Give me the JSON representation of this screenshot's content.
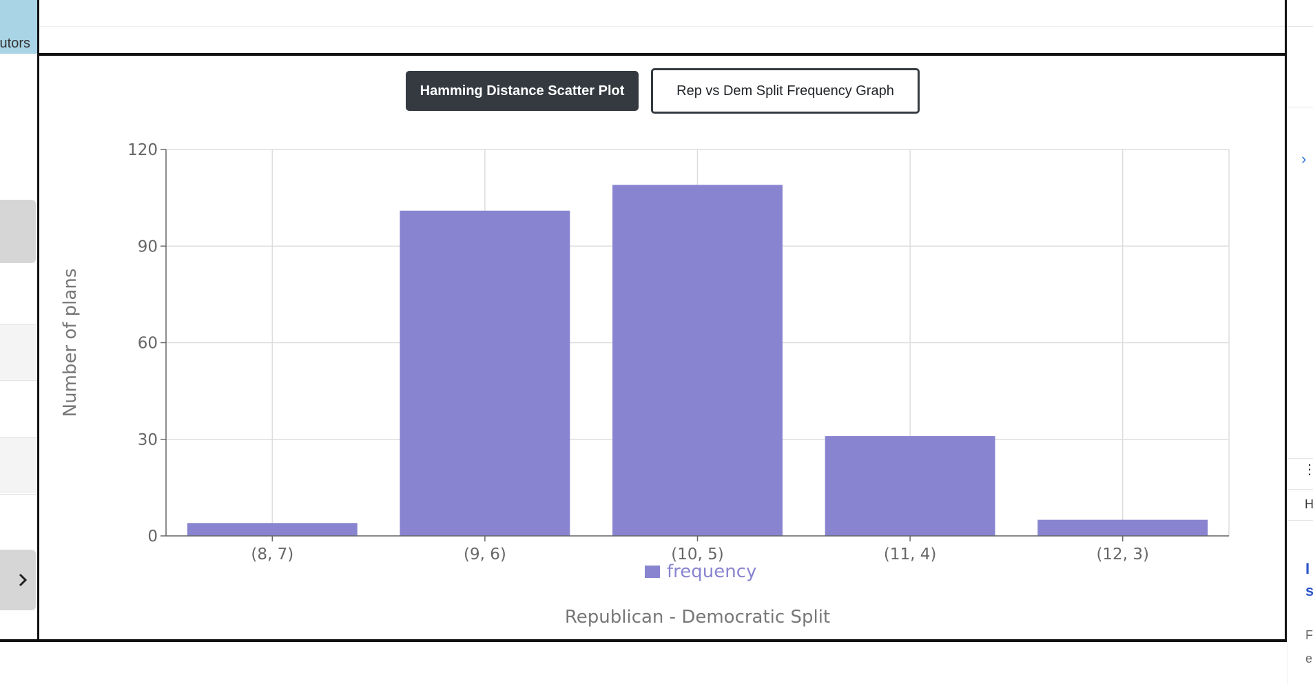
{
  "sidebar_left": {
    "tab_label": "utors",
    "expand_icon": "chevron-right-icon"
  },
  "buttons": {
    "scatter_label": "Hamming Distance Scatter Plot",
    "frequency_label": "Rep vs Dem Split Frequency Graph"
  },
  "right_strip": {
    "chevron_icon": "chevron-right-icon",
    "menu_icon": "vertical-dots-icon",
    "header_letter": "H",
    "link_text_1": "I",
    "link_text_2": "s",
    "text_1": "F",
    "text_2": "e"
  },
  "colors": {
    "bar": "#8884d0",
    "grid": "#dddddd",
    "axis": "#666666"
  },
  "chart_data": {
    "type": "bar",
    "categories": [
      "(8, 7)",
      "(9, 6)",
      "(10, 5)",
      "(11, 4)",
      "(12, 3)"
    ],
    "series": [
      {
        "name": "frequency",
        "values": [
          4,
          101,
          109,
          31,
          5
        ]
      }
    ],
    "xlabel": "Republican - Democratic Split",
    "ylabel": "Number of plans",
    "ylim": [
      0,
      120
    ],
    "yticks": [
      0,
      30,
      60,
      90,
      120
    ],
    "grid": true,
    "legend": "bottom"
  }
}
